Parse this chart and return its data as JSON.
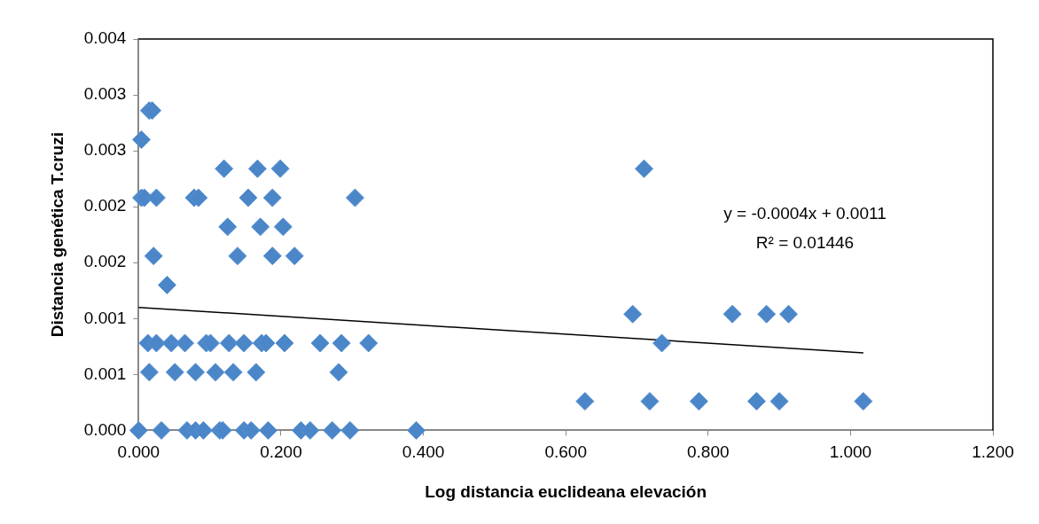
{
  "chart_data": {
    "type": "scatter",
    "xlabel": "Log distancia euclideana elevación",
    "ylabel": "Distancia genética T.cruzi",
    "xlim": [
      0,
      1.2
    ],
    "xticks": [
      {
        "value": 0,
        "label": "0.000"
      },
      {
        "value": 0.2,
        "label": "0.200"
      },
      {
        "value": 0.4,
        "label": "0.400"
      },
      {
        "value": 0.6,
        "label": "0.600"
      },
      {
        "value": 0.8,
        "label": "0.800"
      },
      {
        "value": 1,
        "label": "1.000"
      },
      {
        "value": 1.2,
        "label": "1.200"
      }
    ],
    "ylim": [
      0,
      0.0035
    ],
    "yticks": [
      {
        "value": 0,
        "label": "0.000"
      },
      {
        "value": 0.0005,
        "label": "0.001"
      },
      {
        "value": 0.001,
        "label": "0.001"
      },
      {
        "value": 0.0015,
        "label": "0.002"
      },
      {
        "value": 0.002,
        "label": "0.002"
      },
      {
        "value": 0.0025,
        "label": "0.003"
      },
      {
        "value": 0.003,
        "label": "0.003"
      },
      {
        "value": 0.0035,
        "label": "0.004"
      }
    ],
    "grid": false,
    "legend": false,
    "marker": "diamond",
    "annotations": [
      "y = -0.0004x + 0.0011",
      "R² = 0.01446"
    ],
    "series": [
      {
        "color": "#4a86c8",
        "x": [
          0,
          0.032,
          0.068,
          0.08,
          0.091,
          0.114,
          0.118,
          0.148,
          0.158,
          0.182,
          0.228,
          0.241,
          0.272,
          0.297,
          0.39,
          0.627,
          0.718,
          0.787,
          0.868,
          0.9,
          1.018,
          0.015,
          0.051,
          0.08,
          0.108,
          0.133,
          0.165,
          0.281,
          0.013,
          0.025,
          0.046,
          0.065,
          0.095,
          0.101,
          0.127,
          0.148,
          0.173,
          0.179,
          0.205,
          0.255,
          0.285,
          0.323,
          0.735,
          0.694,
          0.834,
          0.882,
          0.913,
          0.04,
          0.021,
          0.139,
          0.188,
          0.219,
          0.125,
          0.171,
          0.203,
          0.004,
          0.008,
          0.025,
          0.078,
          0.084,
          0.154,
          0.188,
          0.304,
          0.12,
          0.167,
          0.199,
          0.71,
          0.004,
          0.015,
          0.019
        ],
        "values": [
          0,
          0,
          0,
          0,
          0,
          0,
          0,
          0,
          0,
          0,
          0,
          0,
          0,
          0,
          0,
          0.00026,
          0.00026,
          0.00026,
          0.00026,
          0.00026,
          0.00026,
          0.00052,
          0.00052,
          0.00052,
          0.00052,
          0.00052,
          0.00052,
          0.00052,
          0.00078,
          0.00078,
          0.00078,
          0.00078,
          0.00078,
          0.00078,
          0.00078,
          0.00078,
          0.00078,
          0.00078,
          0.00078,
          0.00078,
          0.00078,
          0.00078,
          0.00078,
          0.00104,
          0.00104,
          0.00104,
          0.00104,
          0.0013,
          0.00156,
          0.00156,
          0.00156,
          0.00156,
          0.00182,
          0.00182,
          0.00182,
          0.00208,
          0.00208,
          0.00208,
          0.00208,
          0.00208,
          0.00208,
          0.00208,
          0.00208,
          0.00234,
          0.00234,
          0.00234,
          0.00234,
          0.0026,
          0.00286,
          0.00286
        ]
      },
      {
        "type": "line",
        "color": "#000000",
        "marker": "none",
        "x": [
          0,
          1.018
        ],
        "values": [
          0.0011,
          0.000693
        ]
      }
    ]
  }
}
